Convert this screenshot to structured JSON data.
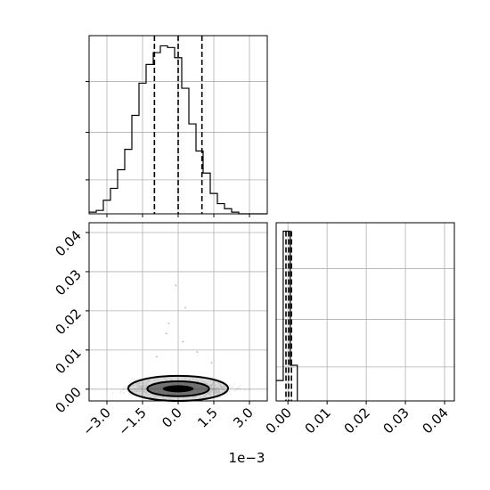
{
  "chart_data": [
    {
      "id": "hist-x",
      "type": "histogram",
      "position": "top-left",
      "x_range": [
        -3.75,
        3.75
      ],
      "x_unit_offset": "1e-3",
      "bin_width": 0.3,
      "counts": [
        1,
        2,
        8,
        15,
        26,
        38,
        58,
        77,
        88,
        95,
        99,
        98,
        92,
        74,
        53,
        37,
        24,
        12,
        6,
        3,
        1,
        0,
        0,
        0,
        0
      ],
      "ylim": [
        0,
        105
      ],
      "quantiles": [
        -1.0,
        0.0,
        1.0
      ],
      "grid": true,
      "y_tick_labels_shown": false
    },
    {
      "id": "hist-y",
      "type": "histogram",
      "position": "bottom-right",
      "x_range": [
        -0.003,
        0.0425
      ],
      "bin_edges": [
        -0.003,
        -0.0012,
        0.0006,
        0.0024
      ],
      "counts": [
        12,
        100,
        21
      ],
      "ylim": [
        0,
        105
      ],
      "quantiles": [
        -0.0005,
        0.0002,
        0.0009
      ],
      "xticks": [
        0.0,
        0.01,
        0.02,
        0.03,
        0.04
      ],
      "xtick_labels": [
        "0.00",
        "0.01",
        "0.02",
        "0.03",
        "0.04"
      ],
      "grid": true
    },
    {
      "id": "scatter-xy",
      "type": "scatter",
      "position": "bottom-left",
      "x_range": [
        -3.75,
        3.75
      ],
      "y_range": [
        -0.003,
        0.0425
      ],
      "x_unit_offset": "1e-3",
      "xticks": [
        -3.0,
        -1.5,
        0.0,
        1.5,
        3.0
      ],
      "xtick_labels": [
        "−3.0",
        "−1.5",
        "0.0",
        "1.5",
        "3.0"
      ],
      "yticks": [
        0.0,
        0.01,
        0.02,
        0.03,
        0.04
      ],
      "ytick_labels": [
        "0.00",
        "0.01",
        "0.02",
        "0.03",
        "0.04"
      ],
      "outliers": [
        [
          -0.1,
          0.0265
        ],
        [
          0.3,
          0.0208
        ],
        [
          -0.4,
          0.0168
        ],
        [
          -0.5,
          0.0142
        ],
        [
          0.2,
          0.0121
        ],
        [
          0.8,
          0.0095
        ],
        [
          -0.9,
          0.0083
        ],
        [
          1.4,
          0.0067
        ]
      ],
      "contours": [
        {
          "cx": 0.0,
          "cy": 0.0002,
          "rx": 2.1,
          "ry": 0.0032
        },
        {
          "cx": 0.0,
          "cy": 0.0001,
          "rx": 1.3,
          "ry": 0.0019
        },
        {
          "cx": 0.0,
          "cy": 0.0001,
          "rx": 0.65,
          "ry": 0.0009
        }
      ],
      "grid": true
    }
  ],
  "labels": {
    "x_offset": "1e−3"
  },
  "colors": {
    "ink": "#000000",
    "grid": "#b0b0b0",
    "density": "#4d4d4d"
  }
}
